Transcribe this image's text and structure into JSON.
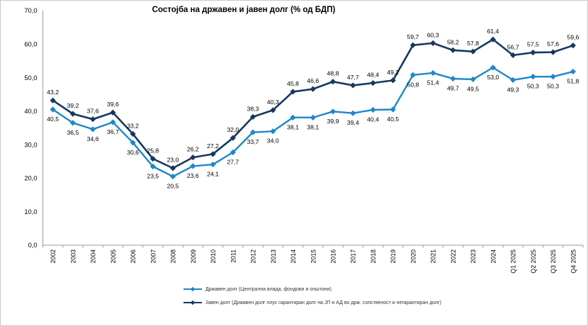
{
  "title": "Состојба на државен и јавен долг (% од БДП)",
  "chart_data": {
    "type": "line",
    "categories": [
      "2002",
      "2003",
      "2004",
      "2005",
      "2006",
      "2007",
      "2008",
      "2009",
      "2010",
      "2011",
      "2012",
      "2013",
      "2014",
      "2015",
      "2016",
      "2017",
      "2018",
      "2019",
      "2020",
      "2021",
      "2022",
      "2023",
      "2024",
      "Q1 2025",
      "Q2 2025",
      "Q3 2025",
      "Q4 2025"
    ],
    "series": [
      {
        "name": "Државен долг (Централна влада, фондови и општини)",
        "color": "#1E87C8",
        "label_position": "below",
        "line_width": 2.4,
        "values": [
          40.5,
          36.5,
          34.6,
          36.7,
          30.6,
          23.5,
          20.5,
          23.6,
          24.1,
          27.7,
          33.7,
          34.0,
          38.1,
          38.1,
          39.9,
          39.4,
          40.4,
          40.5,
          50.8,
          51.4,
          49.7,
          49.5,
          53.0,
          49.3,
          50.3,
          50.3,
          51.8
        ]
      },
      {
        "name": "Јавен долг (Државен долг плус гарантиран долг на ЈП и АД во држ. сопственост и негарантиран долг)",
        "color": "#17375E",
        "label_position": "above",
        "line_width": 2.6,
        "values": [
          43.2,
          39.2,
          37.6,
          39.6,
          33.2,
          25.8,
          23.0,
          26.2,
          27.2,
          32.0,
          38.3,
          40.3,
          45.8,
          46.6,
          48.8,
          47.7,
          48.4,
          49.2,
          59.7,
          60.3,
          58.2,
          57.8,
          61.4,
          56.7,
          57.5,
          57.6,
          59.6
        ]
      }
    ],
    "title": "Состојба на државен и јавен долг (% од БДП)",
    "xlabel": "",
    "ylabel": "",
    "ylim": [
      0,
      70
    ],
    "ytick_step": 10,
    "ytick_labels": [
      "0,0",
      "10,0",
      "20,0",
      "30,0",
      "40,0",
      "50,0",
      "60,0",
      "70,0"
    ],
    "decimal_separator": ",",
    "grid": false,
    "legend_position": "bottom",
    "marker": "diamond",
    "data_labels": true,
    "axis_color": "#9b9b9b",
    "label_color": "#000000"
  }
}
